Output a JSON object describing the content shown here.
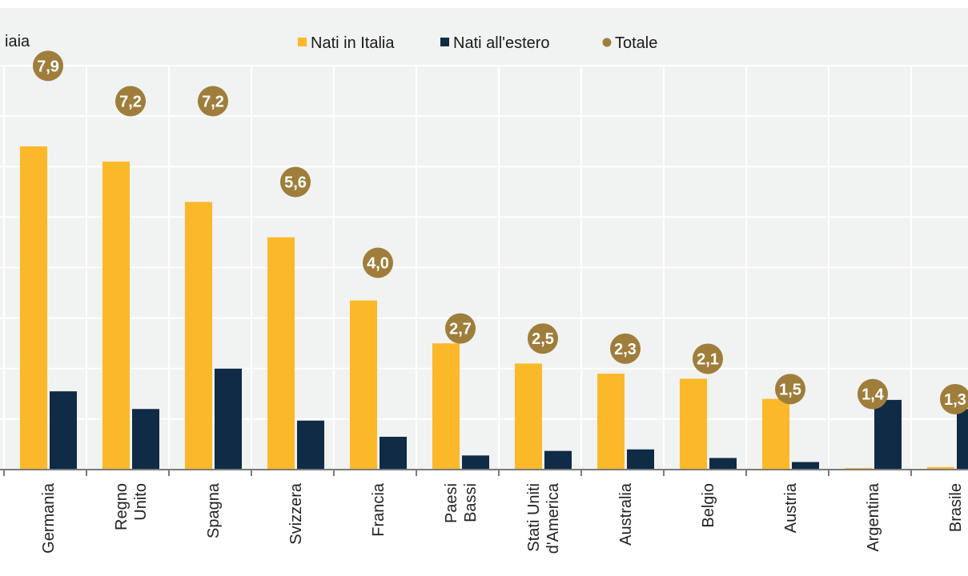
{
  "colors": {
    "nati_in_italia": "#fbb829",
    "nati_all_estero": "#0f2b45",
    "totale": "#9e7e3a",
    "plot_background": "#f1f2f2",
    "grid": "#ffffff",
    "axis": "#7a7a7a"
  },
  "header": {
    "corner_text": "iaia"
  },
  "legend": {
    "position": "top-center",
    "items": [
      {
        "label": "Nati in Italia",
        "key": "nati_in_italia",
        "marker": "square"
      },
      {
        "label": "Nati all'estero",
        "key": "nati_all_estero",
        "marker": "square"
      },
      {
        "label": "Totale",
        "key": "totale",
        "marker": "circle"
      }
    ]
  },
  "chart_data": {
    "type": "bar",
    "categories": [
      [
        "Germania"
      ],
      [
        "Regno",
        "Unito"
      ],
      [
        "Spagna"
      ],
      [
        "Svizzera"
      ],
      [
        "Francia"
      ],
      [
        "Paesi",
        "Bassi"
      ],
      [
        "Stati Uniti",
        "d'America"
      ],
      [
        "Australia"
      ],
      [
        "Belgio"
      ],
      [
        "Austria"
      ],
      [
        "Argentina"
      ],
      [
        "Brasile"
      ]
    ],
    "series": [
      {
        "name": "Nati in Italia",
        "values": [
          6.4,
          6.1,
          5.3,
          4.6,
          3.35,
          2.5,
          2.1,
          1.9,
          1.8,
          1.4,
          0.03,
          0.05
        ]
      },
      {
        "name": "Nati all'estero",
        "values": [
          1.55,
          1.2,
          2.0,
          0.97,
          0.65,
          0.28,
          0.37,
          0.4,
          0.23,
          0.15,
          1.38,
          1.2
        ]
      }
    ],
    "totals": {
      "name": "Totale",
      "values": [
        7.9,
        7.2,
        7.2,
        5.6,
        4.0,
        2.7,
        2.5,
        2.3,
        2.1,
        1.5,
        1.4,
        1.3
      ],
      "labels": [
        "7,9",
        "7,2",
        "7,2",
        "5,6",
        "4,0",
        "2,7",
        "2,5",
        "2,3",
        "2,1",
        "1,5",
        "1,4",
        "1,3"
      ]
    },
    "ylim": [
      0,
      8
    ],
    "grid": true
  }
}
